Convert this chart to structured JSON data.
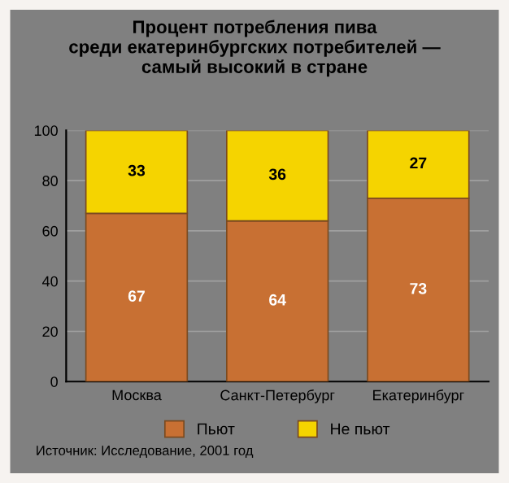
{
  "chart_data": {
    "type": "bar",
    "title": "Процент потребления пива\nсреди екатеринбургских потребителей —\nсамый высокий в стране",
    "categories": [
      "Москва",
      "Санкт-Петербург",
      "Екатеринбург"
    ],
    "series": [
      {
        "name": "Пьют",
        "color": "#c87033",
        "values": [
          67,
          64,
          73
        ]
      },
      {
        "name": "Не пьют",
        "color": "#f5d400",
        "values": [
          33,
          36,
          27
        ]
      }
    ],
    "stacked": true,
    "data_labels": true,
    "ylim": [
      0,
      100
    ],
    "yticks": [
      0,
      20,
      40,
      60,
      80,
      100
    ],
    "grid": "y",
    "legend": "bottom",
    "annotations": [
      "Источник: Исследование, 2001 год"
    ]
  }
}
